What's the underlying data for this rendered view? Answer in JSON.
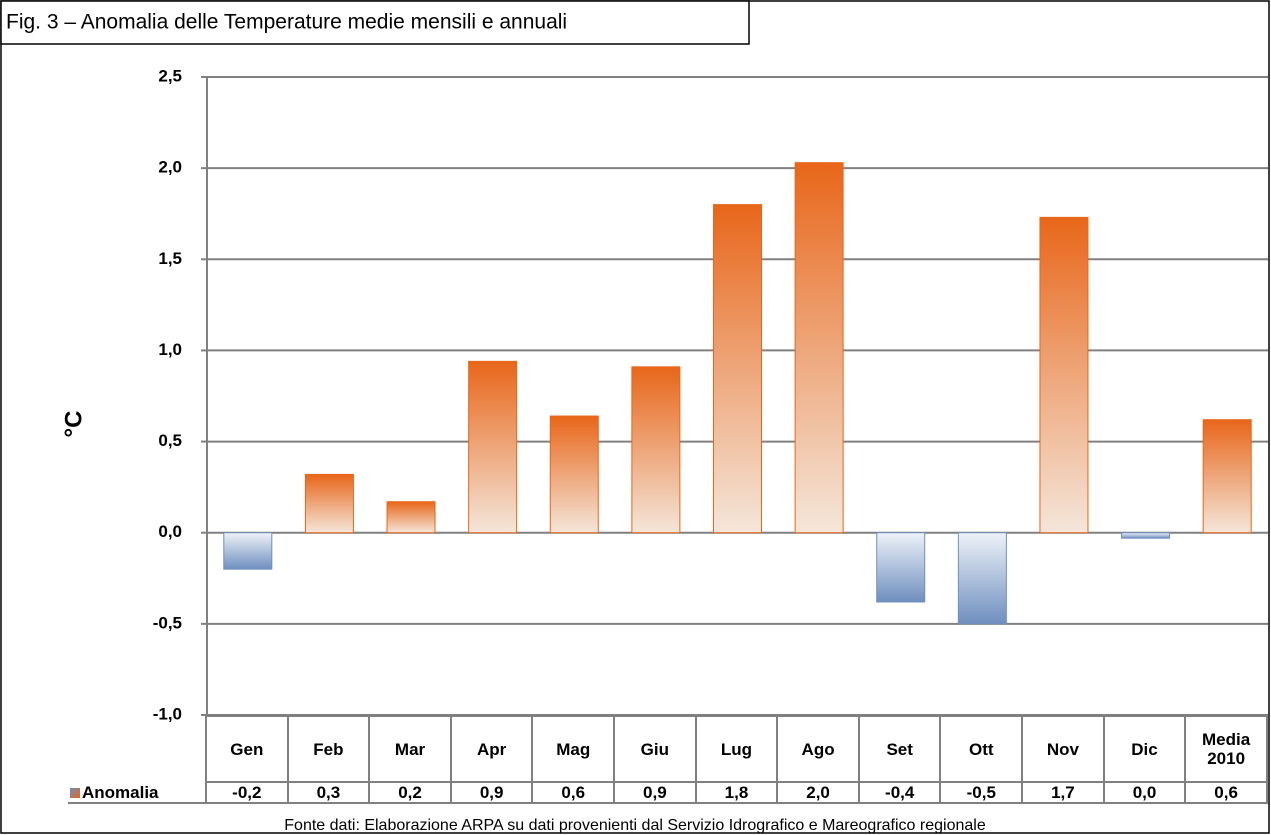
{
  "chart_data": {
    "type": "bar",
    "title": "Fig. 3 – Anomalia delle Temperature medie mensili e annuali",
    "y_label": "°C",
    "footnote": "Fonte dati: Elaborazione ARPA su dati provenienti dal Servizio Idrografico e Mareografico regionale",
    "categories": [
      "Gen",
      "Feb",
      "Mar",
      "Apr",
      "Mag",
      "Giu",
      "Lug",
      "Ago",
      "Set",
      "Ott",
      "Nov",
      "Dic",
      "Media 2010"
    ],
    "series": [
      {
        "name": "Anomalia",
        "color": "#e8661a",
        "negative_color": "#6f8fbf",
        "values": [
          -0.2,
          0.32,
          0.17,
          0.94,
          0.64,
          0.91,
          1.8,
          2.03,
          -0.38,
          -0.5,
          1.73,
          -0.03,
          0.62
        ],
        "value_labels": [
          "-0,2",
          "0,3",
          "0,2",
          "0,9",
          "0,6",
          "0,9",
          "1,8",
          "2,0",
          "-0,4",
          "-0,5",
          "1,7",
          "0,0",
          "0,6"
        ]
      }
    ],
    "ylim": [
      -1.0,
      2.5
    ],
    "yticks": [
      {
        "value": -1.0,
        "label": "-1,0"
      },
      {
        "value": -0.5,
        "label": "-0,5"
      },
      {
        "value": 0,
        "label": "0,0"
      },
      {
        "value": 0.5,
        "label": "0,5"
      },
      {
        "value": 1.0,
        "label": "1,0"
      },
      {
        "value": 1.5,
        "label": "1,5"
      },
      {
        "value": 2.0,
        "label": "2,0"
      },
      {
        "value": 2.5,
        "label": "2,5"
      }
    ],
    "grid": true
  }
}
